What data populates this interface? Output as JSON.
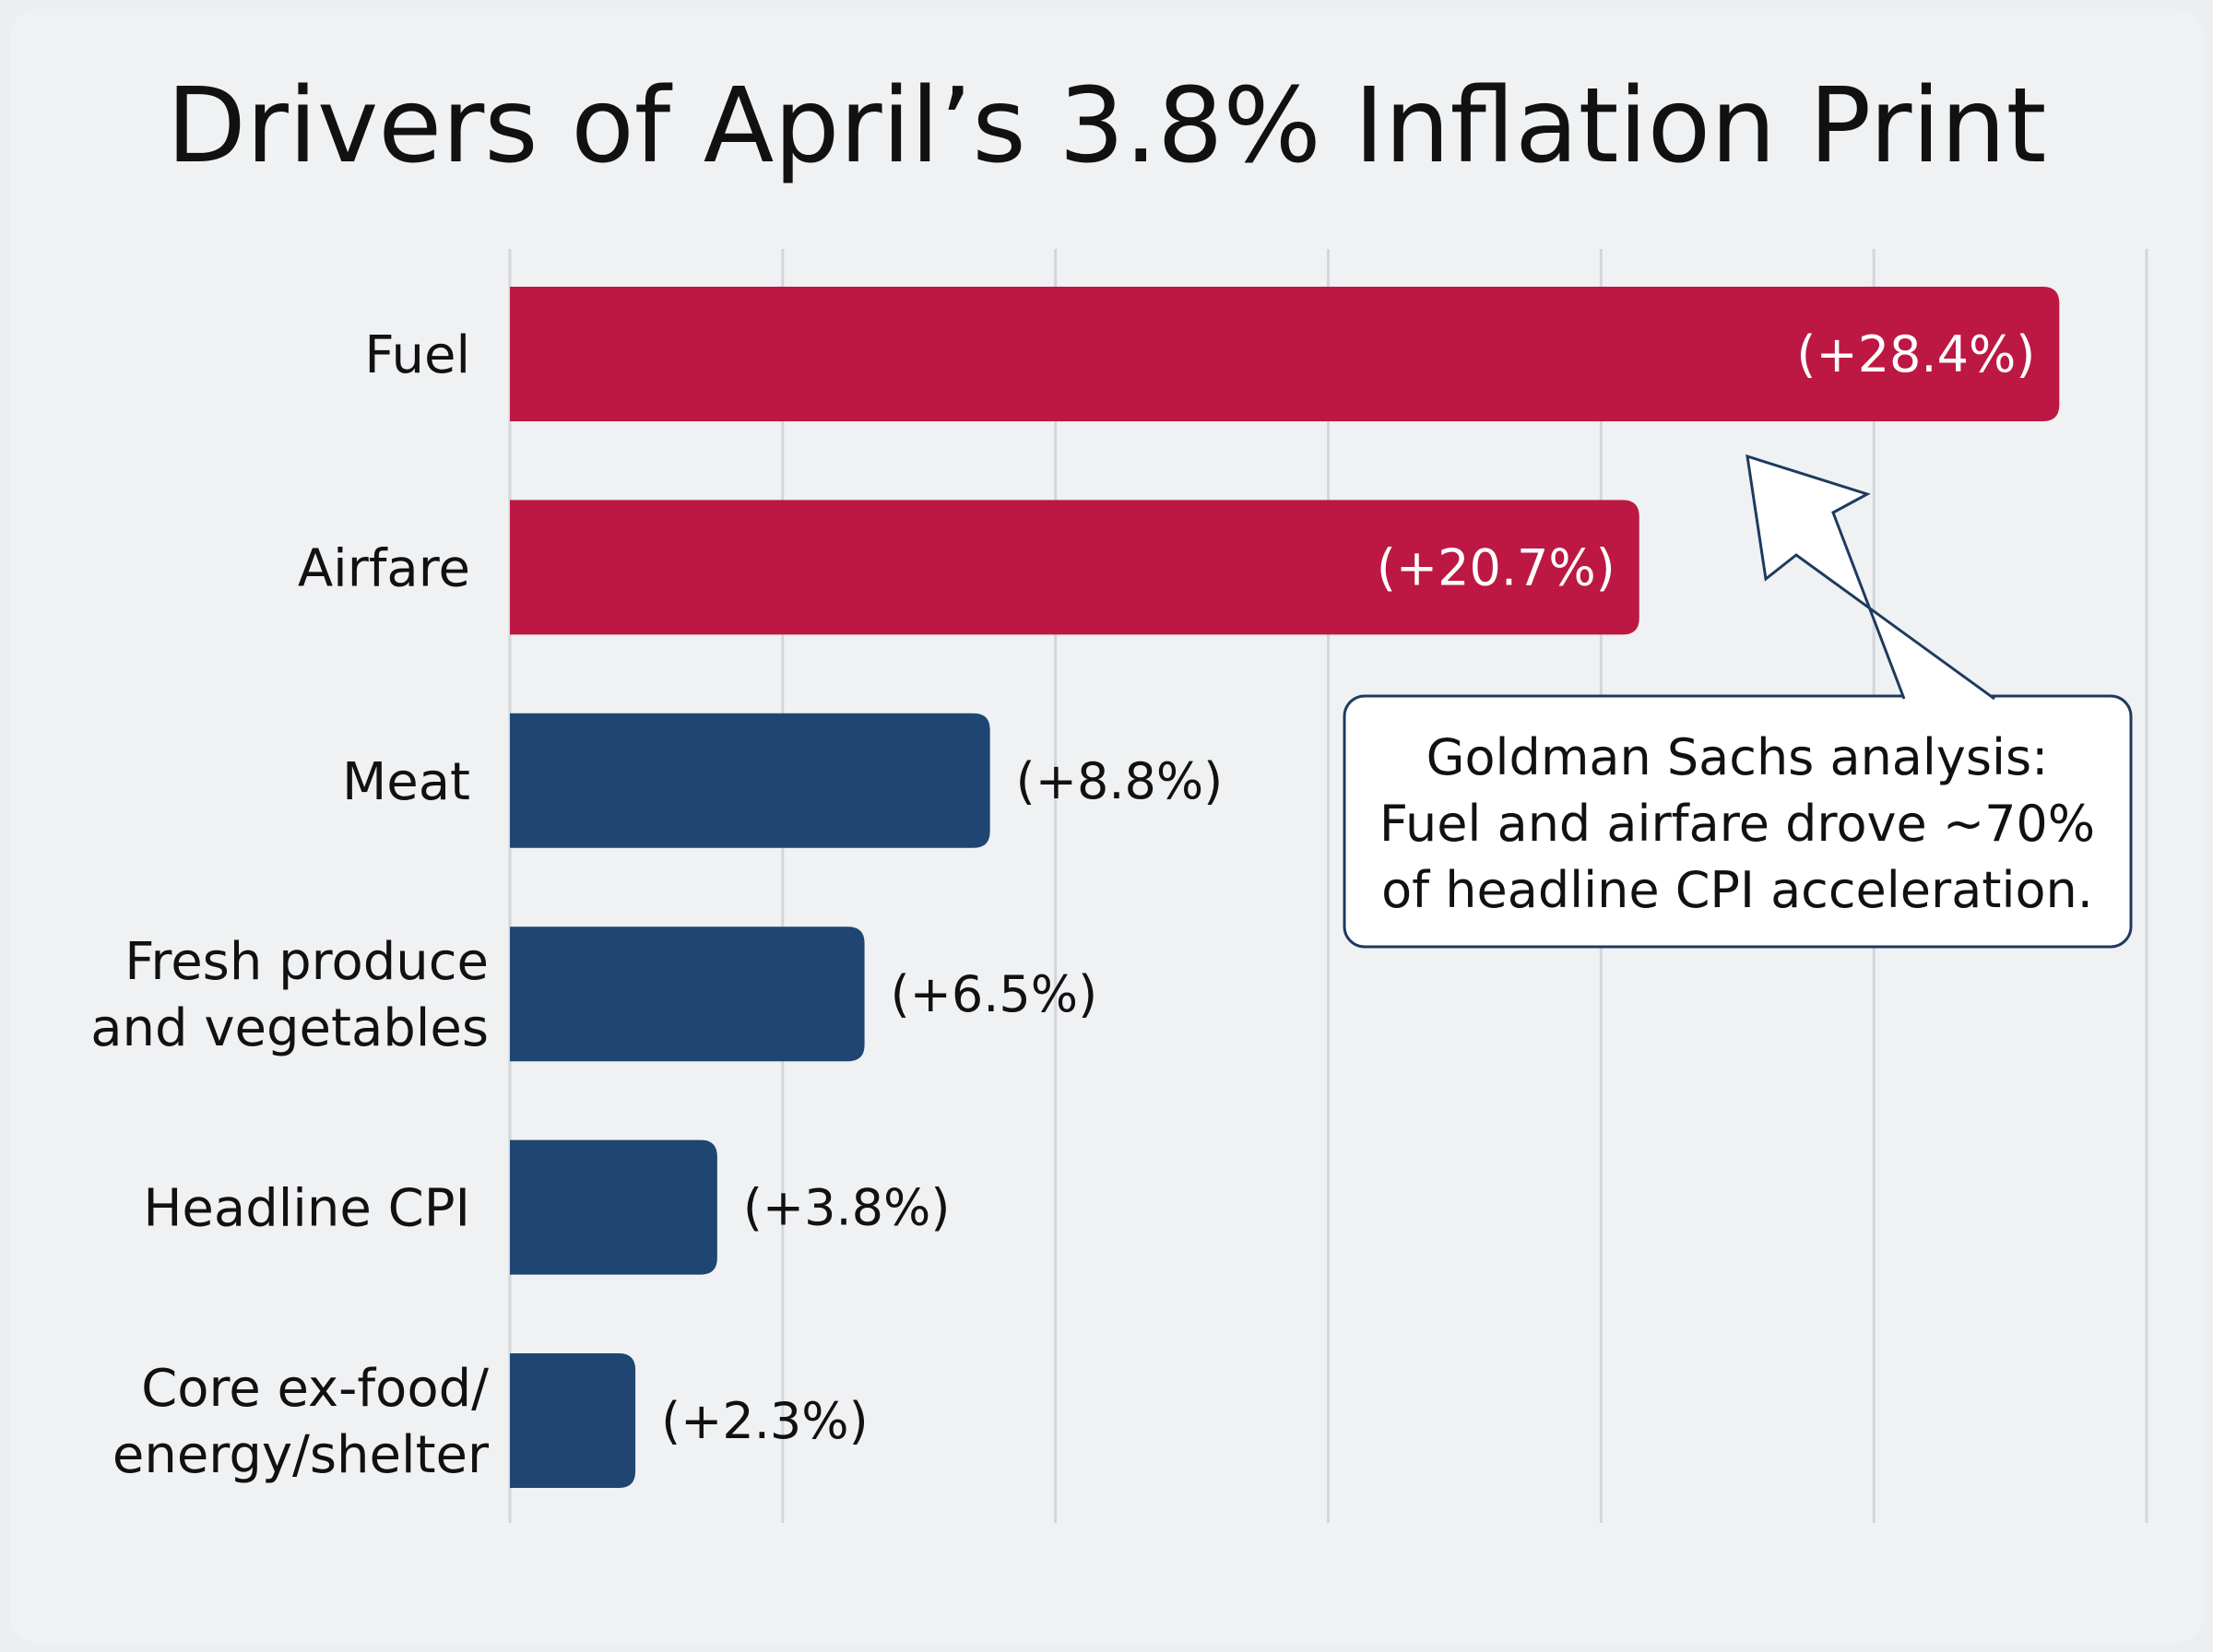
{
  "chart_data": {
    "type": "bar",
    "orientation": "horizontal",
    "title": "Drivers of April’s 3.8% Inflation Print",
    "xlim": [
      0,
      30
    ],
    "grid": true,
    "categories": [
      [
        "Fuel"
      ],
      [
        "Airfare"
      ],
      [
        "Meat"
      ],
      [
        "Fresh produce",
        "and vegetables"
      ],
      [
        "Headline CPI"
      ],
      [
        "Core ex-food/",
        "energy/shelter"
      ]
    ],
    "values": [
      28.4,
      20.7,
      8.8,
      6.5,
      3.8,
      2.3
    ],
    "value_labels": [
      "(+28.4%)",
      "(+20.7%)",
      "(+8.8%)",
      "(+6.5%)",
      "(+3.8%)",
      "(+2.3%)"
    ],
    "highlight": [
      true,
      true,
      false,
      false,
      false,
      false
    ],
    "annotation": {
      "lines": [
        "Goldman Sachs analysis:",
        "Fuel and airfare drove ~70%",
        "of headline CPI acceleration."
      ]
    }
  },
  "colors": {
    "highlight": "#bc1843",
    "base": "#1f4672",
    "grid": "#d3d6db",
    "background": "#eceef1"
  }
}
